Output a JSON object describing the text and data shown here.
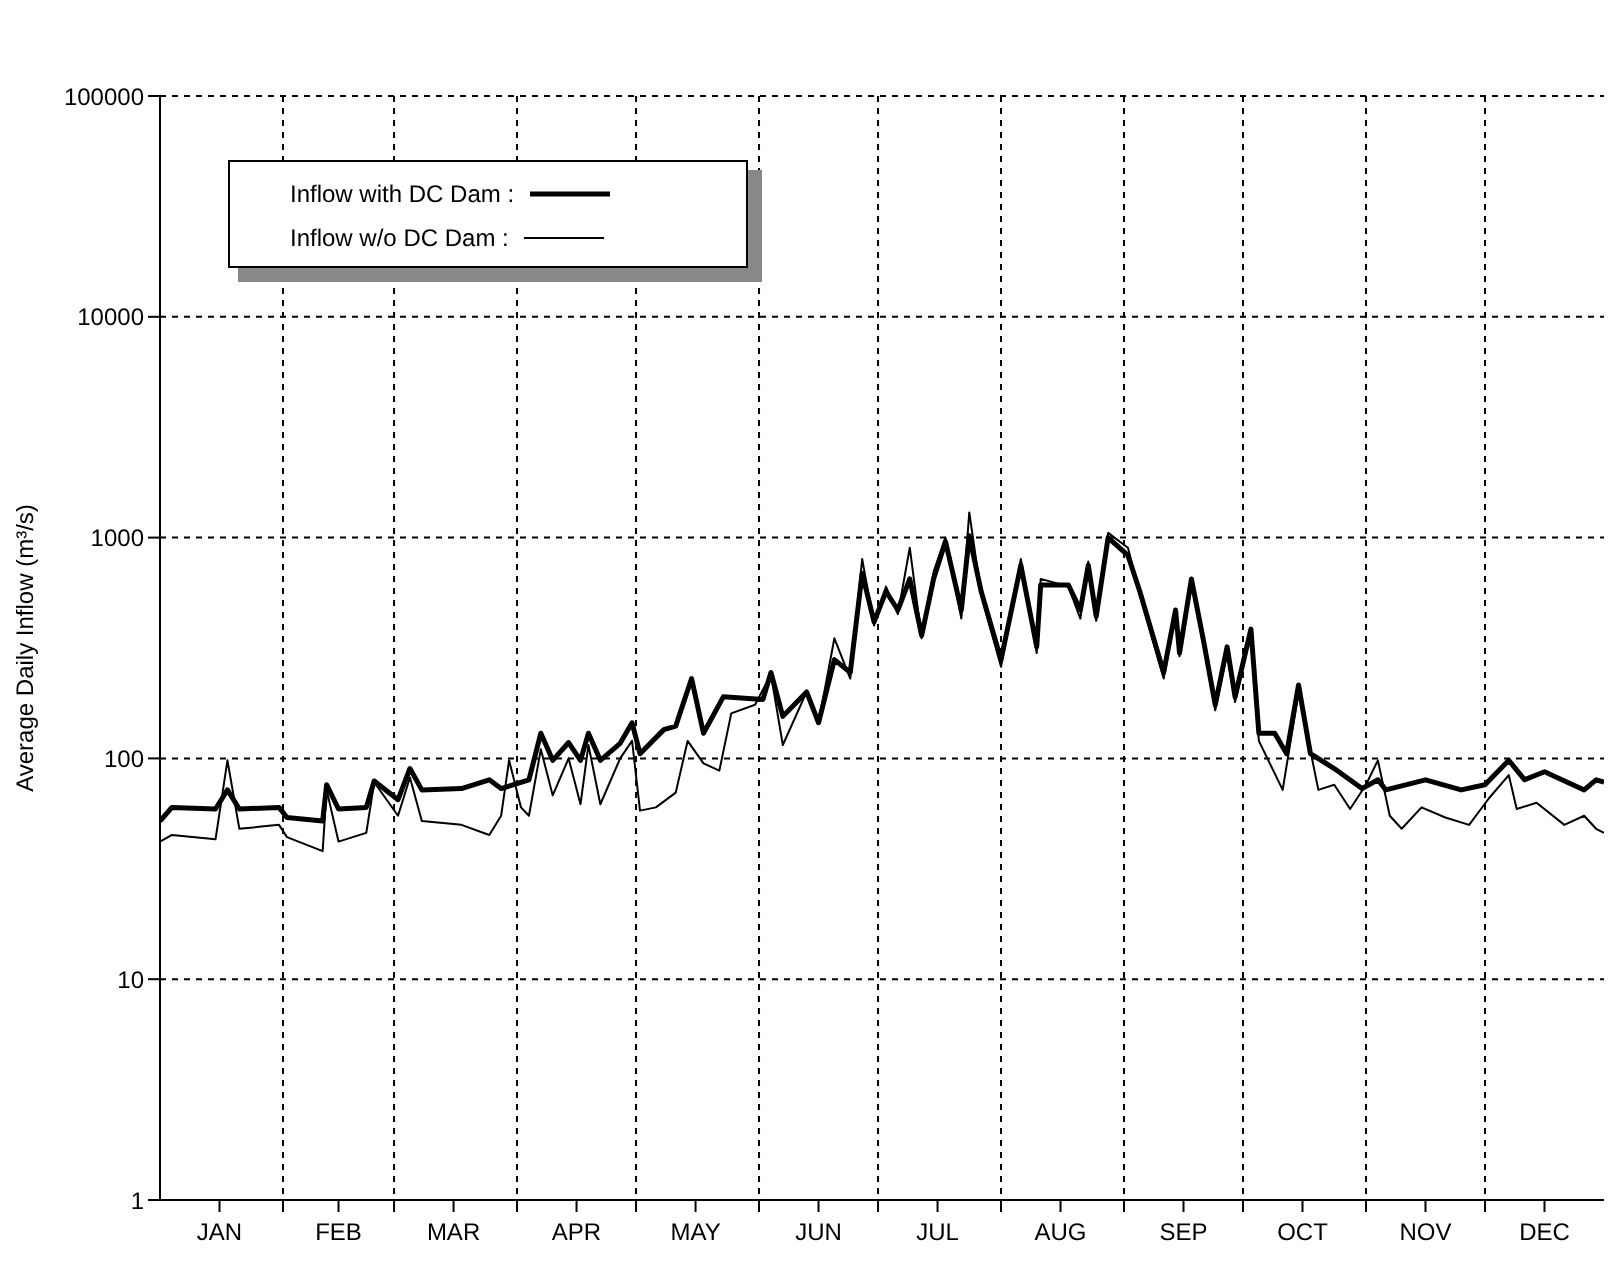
{
  "chart_data": {
    "type": "line",
    "ylabel": "Average Daily Inflow (m³/s)",
    "log": "y",
    "grid": true,
    "legend": "top left",
    "line_style": "solid",
    "marker": "none",
    "xlim": [
      "--01-01",
      "--12-31"
    ],
    "xticks": [
      {
        "value": "--02-01",
        "label": null
      },
      {
        "value": "--03-01",
        "label": null
      },
      {
        "value": "--04-01",
        "label": null
      },
      {
        "value": "--05-01",
        "label": null
      },
      {
        "value": "--06-01",
        "label": null
      },
      {
        "value": "--07-01",
        "label": null
      },
      {
        "value": "--08-01",
        "label": null
      },
      {
        "value": "--09-01",
        "label": null
      },
      {
        "value": "--10-01",
        "label": null
      },
      {
        "value": "--11-01",
        "label": null
      },
      {
        "value": "--12-01",
        "label": null
      },
      {
        "value": "--01-16",
        "label": "JAN"
      },
      {
        "value": "--02-15",
        "label": "FEB"
      },
      {
        "value": "--03-16",
        "label": "MAR"
      },
      {
        "value": "--04-16",
        "label": "APR"
      },
      {
        "value": "--05-16",
        "label": "MAY"
      },
      {
        "value": "--06-16",
        "label": "JUN"
      },
      {
        "value": "--07-16",
        "label": "JUL"
      },
      {
        "value": "--08-16",
        "label": "AUG"
      },
      {
        "value": "--09-16",
        "label": "SEP"
      },
      {
        "value": "--10-16",
        "label": "OCT"
      },
      {
        "value": "--11-16",
        "label": "NOV"
      },
      {
        "value": "--12-16",
        "label": "DEC"
      }
    ],
    "ylim": [
      1,
      100000
    ],
    "yticks": [
      1,
      10,
      100,
      1000,
      10000,
      100000
    ],
    "series": [
      {
        "name": "Inflow with DC Dam :",
        "color": "#000000",
        "x": [
          "--01-01",
          "--01-04",
          "--01-15",
          "--01-18",
          "--01-21",
          "--01-31",
          "--02-02",
          "--02-11",
          "--02-12",
          "--02-15",
          "--02-22",
          "--02-24",
          "--03-02",
          "--03-05",
          "--03-08",
          "--03-18",
          "--03-25",
          "--03-28",
          "--04-04",
          "--04-07",
          "--04-10",
          "--04-14",
          "--04-17",
          "--04-19",
          "--04-22",
          "--04-27",
          "--04-30",
          "--05-02",
          "--05-08",
          "--05-11",
          "--05-15",
          "--05-18",
          "--05-23",
          "--06-02",
          "--06-04",
          "--06-07",
          "--06-13",
          "--06-16",
          "--06-20",
          "--06-24",
          "--06-27",
          "--06-30",
          "--07-03",
          "--07-06",
          "--07-09",
          "--07-12",
          "--07-15",
          "--07-18",
          "--07-22",
          "--07-24",
          "--07-27",
          "--08-01",
          "--08-06",
          "--08-10",
          "--08-11",
          "--08-18",
          "--08-21",
          "--08-23",
          "--08-25",
          "--08-28",
          "--09-02",
          "--09-05",
          "--09-11",
          "--09-14",
          "--09-15",
          "--09-18",
          "--09-21",
          "--09-24",
          "--09-27",
          "--09-29",
          "--10-03",
          "--10-05",
          "--10-09",
          "--10-12",
          "--10-15",
          "--10-18",
          "--10-24",
          "--10-31",
          "--11-04",
          "--11-06",
          "--11-16",
          "--11-25",
          "--12-01",
          "--12-07",
          "--12-11",
          "--12-16",
          "--12-26",
          "--12-29",
          "--12-31"
        ],
        "values": [
          52,
          60,
          59,
          72,
          59,
          60,
          54,
          52,
          76,
          59,
          60,
          79,
          65,
          90,
          72,
          73,
          80,
          73,
          80,
          130,
          98,
          118,
          98,
          130,
          98,
          117,
          145,
          105,
          135,
          140,
          230,
          130,
          190,
          185,
          245,
          155,
          200,
          145,
          280,
          245,
          690,
          415,
          570,
          470,
          650,
          360,
          650,
          960,
          470,
          1020,
          570,
          280,
          750,
          320,
          610,
          610,
          470,
          750,
          440,
          1000,
          830,
          570,
          245,
          470,
          300,
          650,
          345,
          175,
          320,
          190,
          385,
          130,
          130,
          105,
          215,
          105,
          90,
          73,
          80,
          72,
          80,
          72,
          76,
          98,
          80,
          87,
          72,
          80,
          78
        ]
      },
      {
        "name": "Inflow w/o DC Dam :",
        "color": "#000000",
        "x": [
          "--01-01",
          "--01-04",
          "--01-15",
          "--01-18",
          "--01-21",
          "--01-31",
          "--02-02",
          "--02-11",
          "--02-12",
          "--02-15",
          "--02-22",
          "--02-24",
          "--03-02",
          "--03-05",
          "--03-08",
          "--03-18",
          "--03-25",
          "--03-28",
          "--03-30",
          "--04-02",
          "--04-04",
          "--04-07",
          "--04-10",
          "--04-14",
          "--04-17",
          "--04-19",
          "--04-22",
          "--04-27",
          "--04-30",
          "--05-02",
          "--05-06",
          "--05-11",
          "--05-14",
          "--05-18",
          "--05-22",
          "--05-25",
          "--05-31",
          "--06-04",
          "--06-07",
          "--06-13",
          "--06-16",
          "--06-20",
          "--06-24",
          "--06-27",
          "--06-30",
          "--07-03",
          "--07-06",
          "--07-09",
          "--07-12",
          "--07-15",
          "--07-18",
          "--07-22",
          "--07-24",
          "--07-27",
          "--08-01",
          "--08-06",
          "--08-10",
          "--08-11",
          "--08-18",
          "--08-21",
          "--08-23",
          "--08-25",
          "--08-28",
          "--09-02",
          "--09-05",
          "--09-11",
          "--09-14",
          "--09-15",
          "--09-18",
          "--09-21",
          "--09-24",
          "--09-27",
          "--09-29",
          "--10-03",
          "--10-05",
          "--10-11",
          "--10-15",
          "--10-20",
          "--10-24",
          "--10-28",
          "--11-01",
          "--11-04",
          "--11-07",
          "--11-10",
          "--11-15",
          "--11-21",
          "--11-27",
          "--12-02",
          "--12-07",
          "--12-09",
          "--12-14",
          "--12-21",
          "--12-26",
          "--12-29",
          "--12-31"
        ],
        "values": [
          42,
          45,
          43,
          98,
          48,
          50,
          44,
          38,
          72,
          42,
          46,
          78,
          55,
          82,
          52,
          50,
          45,
          55,
          98,
          60,
          55,
          110,
          68,
          100,
          62,
          115,
          62,
          100,
          120,
          58,
          60,
          70,
          120,
          95,
          88,
          160,
          175,
          240,
          115,
          200,
          145,
          350,
          230,
          800,
          400,
          600,
          450,
          900,
          350,
          700,
          1000,
          430,
          1300,
          550,
          260,
          800,
          300,
          650,
          600,
          430,
          780,
          420,
          1050,
          900,
          550,
          230,
          450,
          290,
          620,
          330,
          165,
          300,
          180,
          370,
          120,
          72,
          200,
          72,
          76,
          59,
          76,
          98,
          55,
          48,
          60,
          54,
          50,
          66,
          84,
          59,
          63,
          50,
          55,
          48,
          46
        ]
      }
    ]
  }
}
